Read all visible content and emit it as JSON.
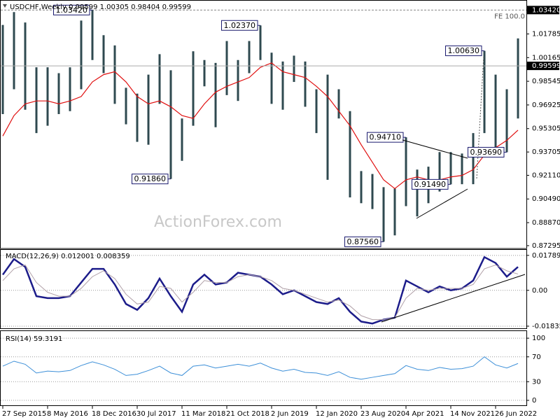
{
  "chart_data": [
    {
      "type": "range",
      "title": "USDCHF,Weekly  0.99599 1.00305 0.98404 0.99599",
      "watermark": "ActionForex.com",
      "color": "#2f4a50",
      "high": [
        1.024,
        1.0328,
        1.0257,
        0.995,
        0.995,
        0.991,
        0.995,
        1.027,
        1.0342,
        1.017,
        1.01,
        0.981,
        0.977,
        0.99,
        1.004,
        0.993,
        0.96,
        1.006,
        1.0,
        0.998,
        1.013,
        1.0,
        1.013,
        1.0237,
        1.005,
        0.999,
        1.003,
        0.999,
        0.98,
        0.99,
        0.98,
        0.965,
        0.924,
        0.922,
        0.913,
        0.912,
        0.9471,
        0.925,
        0.927,
        0.937,
        0.937,
        0.936,
        0.95,
        1.0063,
        0.99,
        0.98,
        1.0148
      ],
      "low": [
        0.963,
        0.98,
        0.966,
        0.95,
        0.955,
        0.963,
        0.965,
        0.98,
        1.0,
        0.991,
        0.97,
        0.956,
        0.944,
        0.942,
        0.97,
        0.9186,
        0.931,
        0.955,
        0.982,
        0.954,
        0.976,
        0.972,
        0.991,
        1.0,
        0.97,
        0.966,
        0.985,
        0.968,
        0.95,
        0.918,
        0.96,
        0.906,
        0.902,
        0.898,
        0.8756,
        0.88,
        0.9,
        0.893,
        0.902,
        0.91,
        0.9149,
        0.915,
        0.915,
        0.95,
        0.937,
        0.9369,
        0.96
      ],
      "series": [
        {
          "color": "#e01010",
          "values": [
            0.948,
            0.962,
            0.97,
            0.972,
            0.972,
            0.97,
            0.972,
            0.975,
            0.985,
            0.99,
            0.992,
            0.985,
            0.975,
            0.97,
            0.972,
            0.968,
            0.962,
            0.96,
            0.97,
            0.978,
            0.982,
            0.985,
            0.988,
            0.995,
            0.998,
            0.992,
            0.99,
            0.988,
            0.982,
            0.975,
            0.965,
            0.955,
            0.942,
            0.93,
            0.918,
            0.912,
            0.918,
            0.92,
            0.918,
            0.918,
            0.92,
            0.921,
            0.925,
            0.935,
            0.94,
            0.945,
            0.952
          ]
        }
      ],
      "ylim": [
        0.871,
        1.0406
      ],
      "yticks": [
        1.01785,
        1.00165,
        0.98545,
        0.96925,
        0.95305,
        0.93705,
        {
          "value": 0.9211,
          "label": "0.92110"
        },
        {
          "value": 0.9049,
          "label": "0.90490"
        },
        {
          "value": 0.8887,
          "label": "0.88870"
        },
        0.87295
      ],
      "grid": false,
      "levels": [
        {
          "value": 1.0342,
          "label": "1.03420",
          "text": "FE 100.0"
        }
      ],
      "last": {
        "value": 0.99599,
        "label": "0.99599"
      },
      "annotations": [
        {
          "bar": 8,
          "value": 1.0342,
          "label": "1.03420"
        },
        {
          "bar": 23,
          "value": 1.0237,
          "label": "1.02370"
        },
        {
          "bar": 15,
          "value": 0.9186,
          "label": "0.91860"
        },
        {
          "bar": 43,
          "value": 1.0063,
          "label": "1.00630"
        },
        {
          "bar": 36,
          "value": 0.9471,
          "label": "0.94710"
        },
        {
          "bar": 45,
          "value": 0.9369,
          "label": "0.93690"
        },
        {
          "bar": 40,
          "value": 0.9149,
          "label": "0.91490"
        },
        {
          "bar": 34,
          "value": 0.8756,
          "label": "0.87560"
        }
      ]
    },
    {
      "type": "line",
      "title": "MACD(12,26,9) 0.012001 0.008359",
      "series": [
        {
          "color": "#1c1c8a",
          "width": 2.5,
          "values": [
            0.008,
            0.016,
            0.012,
            -0.003,
            -0.004,
            -0.004,
            -0.003,
            0.004,
            0.011,
            0.011,
            0.003,
            -0.007,
            -0.01,
            -0.004,
            0.006,
            -0.003,
            -0.011,
            0.003,
            0.008,
            0.003,
            0.004,
            0.009,
            0.008,
            0.007,
            0.003,
            -0.002,
            0.0,
            -0.003,
            -0.006,
            -0.007,
            -0.004,
            -0.011,
            -0.016,
            -0.017,
            -0.015,
            -0.014,
            0.005,
            0.002,
            -0.001,
            0.002,
            0.0,
            0.001,
            0.005,
            0.017,
            0.014,
            0.007,
            0.012001
          ]
        },
        {
          "color": "#b0a0a8",
          "width": 1,
          "values": [
            0.005,
            0.011,
            0.013,
            0.004,
            -0.001,
            -0.003,
            -0.003,
            0.001,
            0.007,
            0.01,
            0.006,
            -0.002,
            -0.007,
            -0.006,
            0.002,
            0.001,
            -0.006,
            -0.001,
            0.005,
            0.004,
            0.004,
            0.007,
            0.008,
            0.007,
            0.005,
            0.001,
            0.0,
            -0.002,
            -0.004,
            -0.006,
            -0.005,
            -0.008,
            -0.013,
            -0.015,
            -0.015,
            -0.014,
            -0.004,
            0.001,
            0.0,
            0.001,
            0.001,
            0.001,
            0.003,
            0.011,
            0.013,
            0.01,
            0.008359
          ]
        }
      ],
      "ylim": [
        -0.0198,
        0.0207
      ],
      "yticks": [
        0.017898,
        {
          "value": 0,
          "label": "0.00"
        },
        -0.018354
      ],
      "grid": true
    },
    {
      "type": "line",
      "title": "RSI(14) 59.3191",
      "categories": [
        "27 Sep 2015",
        null,
        null,
        null,
        "8 May 2016",
        null,
        null,
        null,
        "18 Dec 2016",
        null,
        null,
        null,
        "30 Jul 2017",
        null,
        null,
        null,
        "11 Mar 2018",
        null,
        null,
        null,
        "21 Oct 2018",
        null,
        null,
        null,
        "2 Jun 2019",
        null,
        null,
        null,
        "12 Jan 2020",
        null,
        null,
        null,
        "23 Aug 2020",
        null,
        null,
        null,
        "4 Apr 2021",
        null,
        null,
        null,
        "14 Nov 2021",
        null,
        null,
        null,
        "26 Jun 2022",
        null,
        null
      ],
      "series": [
        {
          "color": "#3c8fd8",
          "width": 1,
          "values": [
            55,
            63,
            58,
            44,
            47,
            46,
            48,
            56,
            62,
            57,
            50,
            40,
            42,
            48,
            55,
            44,
            40,
            55,
            57,
            52,
            55,
            58,
            55,
            60,
            52,
            47,
            50,
            45,
            44,
            40,
            46,
            37,
            34,
            37,
            40,
            43,
            56,
            50,
            48,
            53,
            50,
            51,
            55,
            70,
            57,
            52,
            59.3191
          ]
        }
      ],
      "ylim": [
        -9.1,
        111.4
      ],
      "yticks": [
        100,
        70,
        30,
        0
      ],
      "grid": true
    }
  ]
}
